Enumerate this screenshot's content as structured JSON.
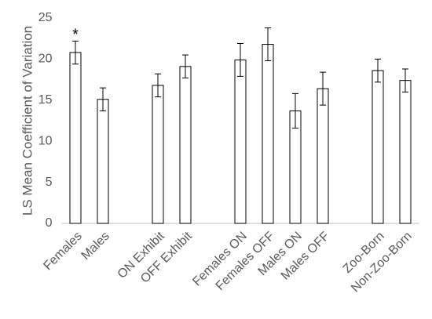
{
  "chart_data": {
    "type": "bar",
    "y_label": "LS Mean Coefficient of Variation",
    "categories": [
      "Females",
      "Males",
      null,
      "ON Exhibit",
      "OFF Exhibit",
      null,
      "Females ON",
      "Females OFF",
      "Males ON",
      "Males OFF",
      null,
      "Zoo-Born",
      "Non-Zoo-Born"
    ],
    "values": [
      20.8,
      15.1,
      null,
      16.8,
      19.1,
      null,
      19.9,
      21.8,
      13.7,
      16.4,
      null,
      18.6,
      17.4
    ],
    "errors": [
      1.4,
      1.4,
      null,
      1.4,
      1.4,
      null,
      2.0,
      2.0,
      2.1,
      2.0,
      null,
      1.4,
      1.4
    ],
    "color": "#ffffff",
    "ylim": [
      0,
      25
    ],
    "yticks": [
      0,
      5,
      10,
      15,
      20,
      25
    ],
    "grid": false,
    "annotations": [
      {
        "text": "*",
        "category": "Females"
      }
    ]
  }
}
